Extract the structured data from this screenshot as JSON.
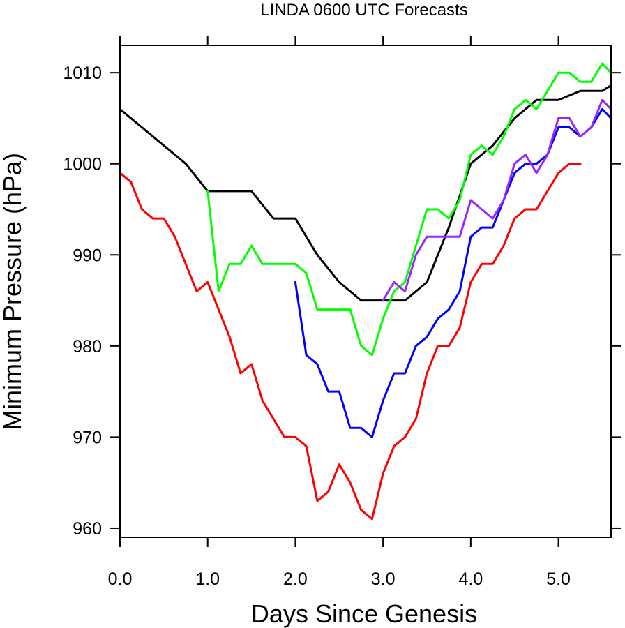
{
  "chart_data": {
    "type": "line",
    "title": "LINDA 0600 UTC Forecasts",
    "xlabel": "Days Since Genesis",
    "ylabel": "Minimum Pressure (hPa)",
    "xlim": [
      0.0,
      5.6
    ],
    "ylim": [
      959,
      1013
    ],
    "x_ticks": [
      0.0,
      1.0,
      2.0,
      3.0,
      4.0,
      5.0
    ],
    "x_tick_labels": [
      "0.0",
      "1.0",
      "2.0",
      "3.0",
      "4.0",
      "5.0"
    ],
    "y_ticks": [
      960,
      970,
      980,
      990,
      1000,
      1010
    ],
    "y_tick_labels": [
      "960",
      "970",
      "980",
      "990",
      "1000",
      "1010"
    ],
    "grid": false,
    "series": [
      {
        "color": "#000000",
        "points": [
          [
            0.0,
            1006
          ],
          [
            0.25,
            1004
          ],
          [
            0.5,
            1002
          ],
          [
            0.75,
            1000
          ],
          [
            1.0,
            997
          ],
          [
            1.25,
            997
          ],
          [
            1.5,
            997
          ],
          [
            1.75,
            994
          ],
          [
            2.0,
            994
          ],
          [
            2.25,
            990
          ],
          [
            2.5,
            987
          ],
          [
            2.75,
            985
          ],
          [
            3.0,
            985
          ],
          [
            3.25,
            985
          ],
          [
            3.5,
            987
          ],
          [
            3.75,
            993
          ],
          [
            4.0,
            1000
          ],
          [
            4.25,
            1002
          ],
          [
            4.5,
            1005
          ],
          [
            4.75,
            1007
          ],
          [
            5.0,
            1007
          ],
          [
            5.25,
            1008
          ],
          [
            5.5,
            1008
          ],
          [
            5.6,
            1008.6
          ]
        ]
      },
      {
        "color": "#ff0000",
        "points": [
          [
            0.0,
            999
          ],
          [
            0.125,
            998
          ],
          [
            0.25,
            995
          ],
          [
            0.375,
            994
          ],
          [
            0.5,
            994
          ],
          [
            0.625,
            992
          ],
          [
            0.75,
            989
          ],
          [
            0.875,
            986
          ],
          [
            1.0,
            987
          ],
          [
            1.125,
            984
          ],
          [
            1.25,
            981
          ],
          [
            1.375,
            977
          ],
          [
            1.5,
            978
          ],
          [
            1.625,
            974
          ],
          [
            1.75,
            972
          ],
          [
            1.875,
            970
          ],
          [
            2.0,
            970
          ],
          [
            2.125,
            969
          ],
          [
            2.25,
            963
          ],
          [
            2.375,
            964
          ],
          [
            2.5,
            967
          ],
          [
            2.625,
            965
          ],
          [
            2.75,
            962
          ],
          [
            2.875,
            961
          ],
          [
            3.0,
            966
          ],
          [
            3.125,
            969
          ],
          [
            3.25,
            970
          ],
          [
            3.375,
            972
          ],
          [
            3.5,
            977
          ],
          [
            3.625,
            980
          ],
          [
            3.75,
            980
          ],
          [
            3.875,
            982
          ],
          [
            4.0,
            987
          ],
          [
            4.125,
            989
          ],
          [
            4.25,
            989
          ],
          [
            4.375,
            991
          ],
          [
            4.5,
            994
          ],
          [
            4.625,
            995
          ],
          [
            4.75,
            995
          ],
          [
            4.875,
            997
          ],
          [
            5.0,
            999
          ],
          [
            5.125,
            1000
          ],
          [
            5.25,
            1000
          ]
        ]
      },
      {
        "color": "#00ff00",
        "points": [
          [
            1.0,
            997
          ],
          [
            1.125,
            986
          ],
          [
            1.25,
            989
          ],
          [
            1.375,
            989
          ],
          [
            1.5,
            991
          ],
          [
            1.625,
            989
          ],
          [
            1.75,
            989
          ],
          [
            1.875,
            989
          ],
          [
            2.0,
            989
          ],
          [
            2.125,
            988
          ],
          [
            2.25,
            984
          ],
          [
            2.375,
            984
          ],
          [
            2.5,
            984
          ],
          [
            2.625,
            984
          ],
          [
            2.75,
            980
          ],
          [
            2.875,
            979
          ],
          [
            3.0,
            983
          ],
          [
            3.125,
            986
          ],
          [
            3.25,
            987
          ],
          [
            3.375,
            991
          ],
          [
            3.5,
            995
          ],
          [
            3.625,
            995
          ],
          [
            3.75,
            994
          ],
          [
            3.875,
            996
          ],
          [
            4.0,
            1001
          ],
          [
            4.125,
            1002
          ],
          [
            4.25,
            1001
          ],
          [
            4.375,
            1003
          ],
          [
            4.5,
            1006
          ],
          [
            4.625,
            1007
          ],
          [
            4.75,
            1006
          ],
          [
            4.875,
            1008
          ],
          [
            5.0,
            1010
          ],
          [
            5.125,
            1010
          ],
          [
            5.25,
            1009
          ],
          [
            5.375,
            1009
          ],
          [
            5.5,
            1011
          ],
          [
            5.6,
            1010
          ]
        ]
      },
      {
        "color": "#0000ff",
        "points": [
          [
            2.0,
            987
          ],
          [
            2.125,
            979
          ],
          [
            2.25,
            978
          ],
          [
            2.375,
            975
          ],
          [
            2.5,
            975
          ],
          [
            2.625,
            971
          ],
          [
            2.75,
            971
          ],
          [
            2.875,
            970
          ],
          [
            3.0,
            974
          ],
          [
            3.125,
            977
          ],
          [
            3.25,
            977
          ],
          [
            3.375,
            980
          ],
          [
            3.5,
            981
          ],
          [
            3.625,
            983
          ],
          [
            3.75,
            984
          ],
          [
            3.875,
            986
          ],
          [
            4.0,
            992
          ],
          [
            4.125,
            993
          ],
          [
            4.25,
            993
          ],
          [
            4.375,
            996
          ],
          [
            4.5,
            999
          ],
          [
            4.625,
            1000
          ],
          [
            4.75,
            1000
          ],
          [
            4.875,
            1001
          ],
          [
            5.0,
            1004
          ],
          [
            5.125,
            1004
          ],
          [
            5.25,
            1003
          ],
          [
            5.375,
            1004
          ],
          [
            5.5,
            1006
          ],
          [
            5.6,
            1005
          ]
        ]
      },
      {
        "color": "#9a26ff",
        "points": [
          [
            3.0,
            985
          ],
          [
            3.125,
            987
          ],
          [
            3.25,
            986
          ],
          [
            3.375,
            990
          ],
          [
            3.5,
            992
          ],
          [
            3.625,
            992
          ],
          [
            3.75,
            992
          ],
          [
            3.875,
            992
          ],
          [
            4.0,
            996
          ],
          [
            4.125,
            995
          ],
          [
            4.25,
            994
          ],
          [
            4.375,
            996
          ],
          [
            4.5,
            1000
          ],
          [
            4.625,
            1001
          ],
          [
            4.75,
            999
          ],
          [
            4.875,
            1001
          ],
          [
            5.0,
            1005
          ],
          [
            5.125,
            1005
          ],
          [
            5.25,
            1003
          ],
          [
            5.375,
            1004
          ],
          [
            5.5,
            1007
          ],
          [
            5.6,
            1006
          ]
        ]
      }
    ]
  }
}
